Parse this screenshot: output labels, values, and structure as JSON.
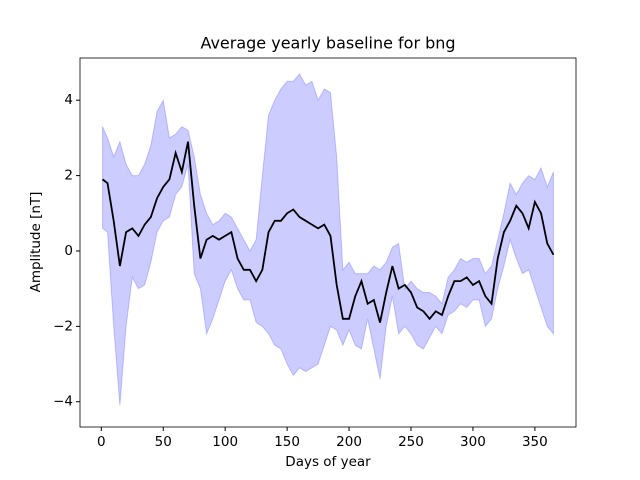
{
  "chart_data": {
    "type": "line",
    "title": "Average yearly baseline for bng",
    "xlabel": "Days of year",
    "ylabel": "Amplitude [nT]",
    "x": [
      1,
      5,
      10,
      15,
      20,
      25,
      30,
      35,
      40,
      45,
      50,
      55,
      60,
      65,
      70,
      75,
      80,
      85,
      90,
      95,
      100,
      105,
      110,
      115,
      120,
      125,
      130,
      135,
      140,
      145,
      150,
      155,
      160,
      165,
      170,
      175,
      180,
      185,
      190,
      195,
      200,
      205,
      210,
      215,
      220,
      225,
      230,
      235,
      240,
      245,
      250,
      255,
      260,
      265,
      270,
      275,
      280,
      285,
      290,
      295,
      300,
      305,
      310,
      315,
      320,
      325,
      330,
      335,
      340,
      345,
      350,
      355,
      360,
      365
    ],
    "values": [
      1.9,
      1.8,
      0.8,
      -0.4,
      0.5,
      0.6,
      0.4,
      0.7,
      0.9,
      1.4,
      1.7,
      1.9,
      2.6,
      2.1,
      2.9,
      1.2,
      -0.2,
      0.3,
      0.4,
      0.3,
      0.4,
      0.5,
      -0.2,
      -0.5,
      -0.5,
      -0.8,
      -0.5,
      0.5,
      0.8,
      0.8,
      1.0,
      1.1,
      0.9,
      0.8,
      0.7,
      0.6,
      0.7,
      0.4,
      -0.9,
      -1.8,
      -1.8,
      -1.2,
      -0.8,
      -1.4,
      -1.3,
      -1.9,
      -1.1,
      -0.4,
      -1.0,
      -0.9,
      -1.1,
      -1.5,
      -1.6,
      -1.8,
      -1.6,
      -1.7,
      -1.2,
      -0.8,
      -0.8,
      -0.7,
      -0.9,
      -0.8,
      -1.2,
      -1.4,
      -0.2,
      0.5,
      0.8,
      1.2,
      1.0,
      0.6,
      1.3,
      1.0,
      0.2,
      -0.1
    ],
    "band_upper": [
      3.3,
      3.0,
      2.5,
      2.9,
      2.3,
      2.0,
      2.0,
      2.3,
      2.8,
      3.7,
      4.0,
      3.0,
      3.1,
      3.3,
      3.2,
      2.5,
      1.5,
      1.0,
      0.7,
      0.8,
      1.0,
      0.9,
      0.6,
      0.3,
      0.0,
      0.3,
      2.0,
      3.6,
      4.0,
      4.3,
      4.5,
      4.5,
      4.7,
      4.4,
      4.5,
      4.0,
      4.3,
      4.2,
      2.5,
      -0.5,
      -0.3,
      -0.6,
      -0.6,
      -0.6,
      -0.4,
      -0.5,
      -0.3,
      0.1,
      0.2,
      -1.0,
      -0.8,
      -1.0,
      -1.1,
      -1.1,
      -1.2,
      -1.4,
      -0.7,
      -0.5,
      -0.2,
      -0.3,
      -0.2,
      -0.2,
      -0.6,
      -0.4,
      0.3,
      1.0,
      1.8,
      1.5,
      1.8,
      2.0,
      1.9,
      2.2,
      1.7,
      2.1
    ],
    "band_lower": [
      0.6,
      0.5,
      -2.0,
      -4.1,
      -2.0,
      -0.7,
      -1.0,
      -0.9,
      -0.3,
      0.5,
      0.8,
      0.9,
      1.5,
      1.7,
      2.3,
      -0.6,
      -1.0,
      -2.2,
      -1.8,
      -1.3,
      -0.8,
      -0.5,
      -1.0,
      -1.3,
      -1.3,
      -1.9,
      -2.0,
      -2.2,
      -2.5,
      -2.6,
      -3.0,
      -3.3,
      -3.1,
      -3.2,
      -3.1,
      -3.0,
      -2.5,
      -2.0,
      -2.1,
      -2.5,
      -2.1,
      -2.5,
      -2.6,
      -1.8,
      -2.6,
      -3.4,
      -2.0,
      -1.2,
      -2.2,
      -2.0,
      -2.2,
      -2.5,
      -2.6,
      -2.3,
      -2.0,
      -2.2,
      -1.7,
      -1.6,
      -1.4,
      -1.5,
      -1.3,
      -1.3,
      -2.0,
      -1.8,
      -1.0,
      -0.4,
      0.3,
      -0.2,
      -0.6,
      -0.5,
      -1.0,
      -1.5,
      -2.0,
      -2.2
    ],
    "color": "#000000",
    "band_color": "#0000ff",
    "xlim": [
      -17.2,
      383.2
    ],
    "ylim": [
      -4.67,
      5.12
    ],
    "xticks": [
      0,
      50,
      100,
      150,
      200,
      250,
      300,
      350
    ],
    "yticks": [
      {
        "value": -4,
        "label": "−4"
      },
      {
        "value": -2,
        "label": "−2"
      },
      0,
      2,
      4
    ]
  }
}
